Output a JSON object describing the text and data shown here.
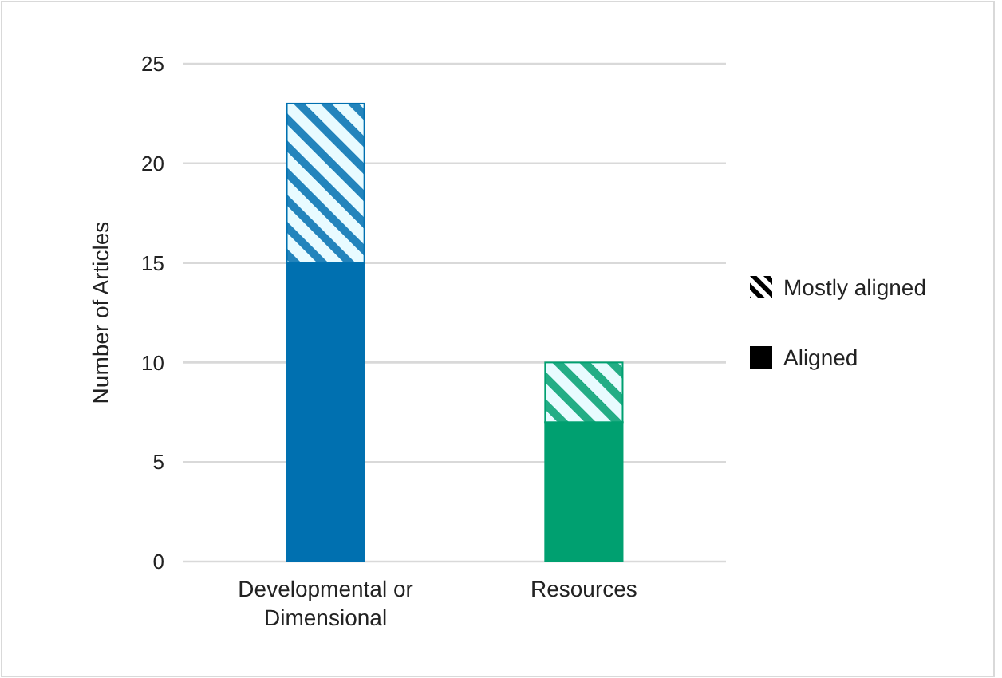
{
  "chart_data": {
    "type": "bar",
    "ylabel": "Number of Articles",
    "categories": [
      "Developmental or Dimensional",
      "Resources"
    ],
    "series": [
      {
        "name": "Aligned",
        "colors": [
          "#0070b0",
          "#00a070"
        ],
        "values": [
          15,
          7
        ]
      },
      {
        "name": "Mostly aligned",
        "colors": [
          "#0070b0",
          "#00a070"
        ],
        "values": [
          8,
          3
        ]
      }
    ],
    "stacked": true,
    "ylim": [
      0,
      25
    ],
    "yticks": [
      0,
      5,
      10,
      15,
      20,
      25
    ],
    "grid": "y",
    "legend": "right"
  }
}
